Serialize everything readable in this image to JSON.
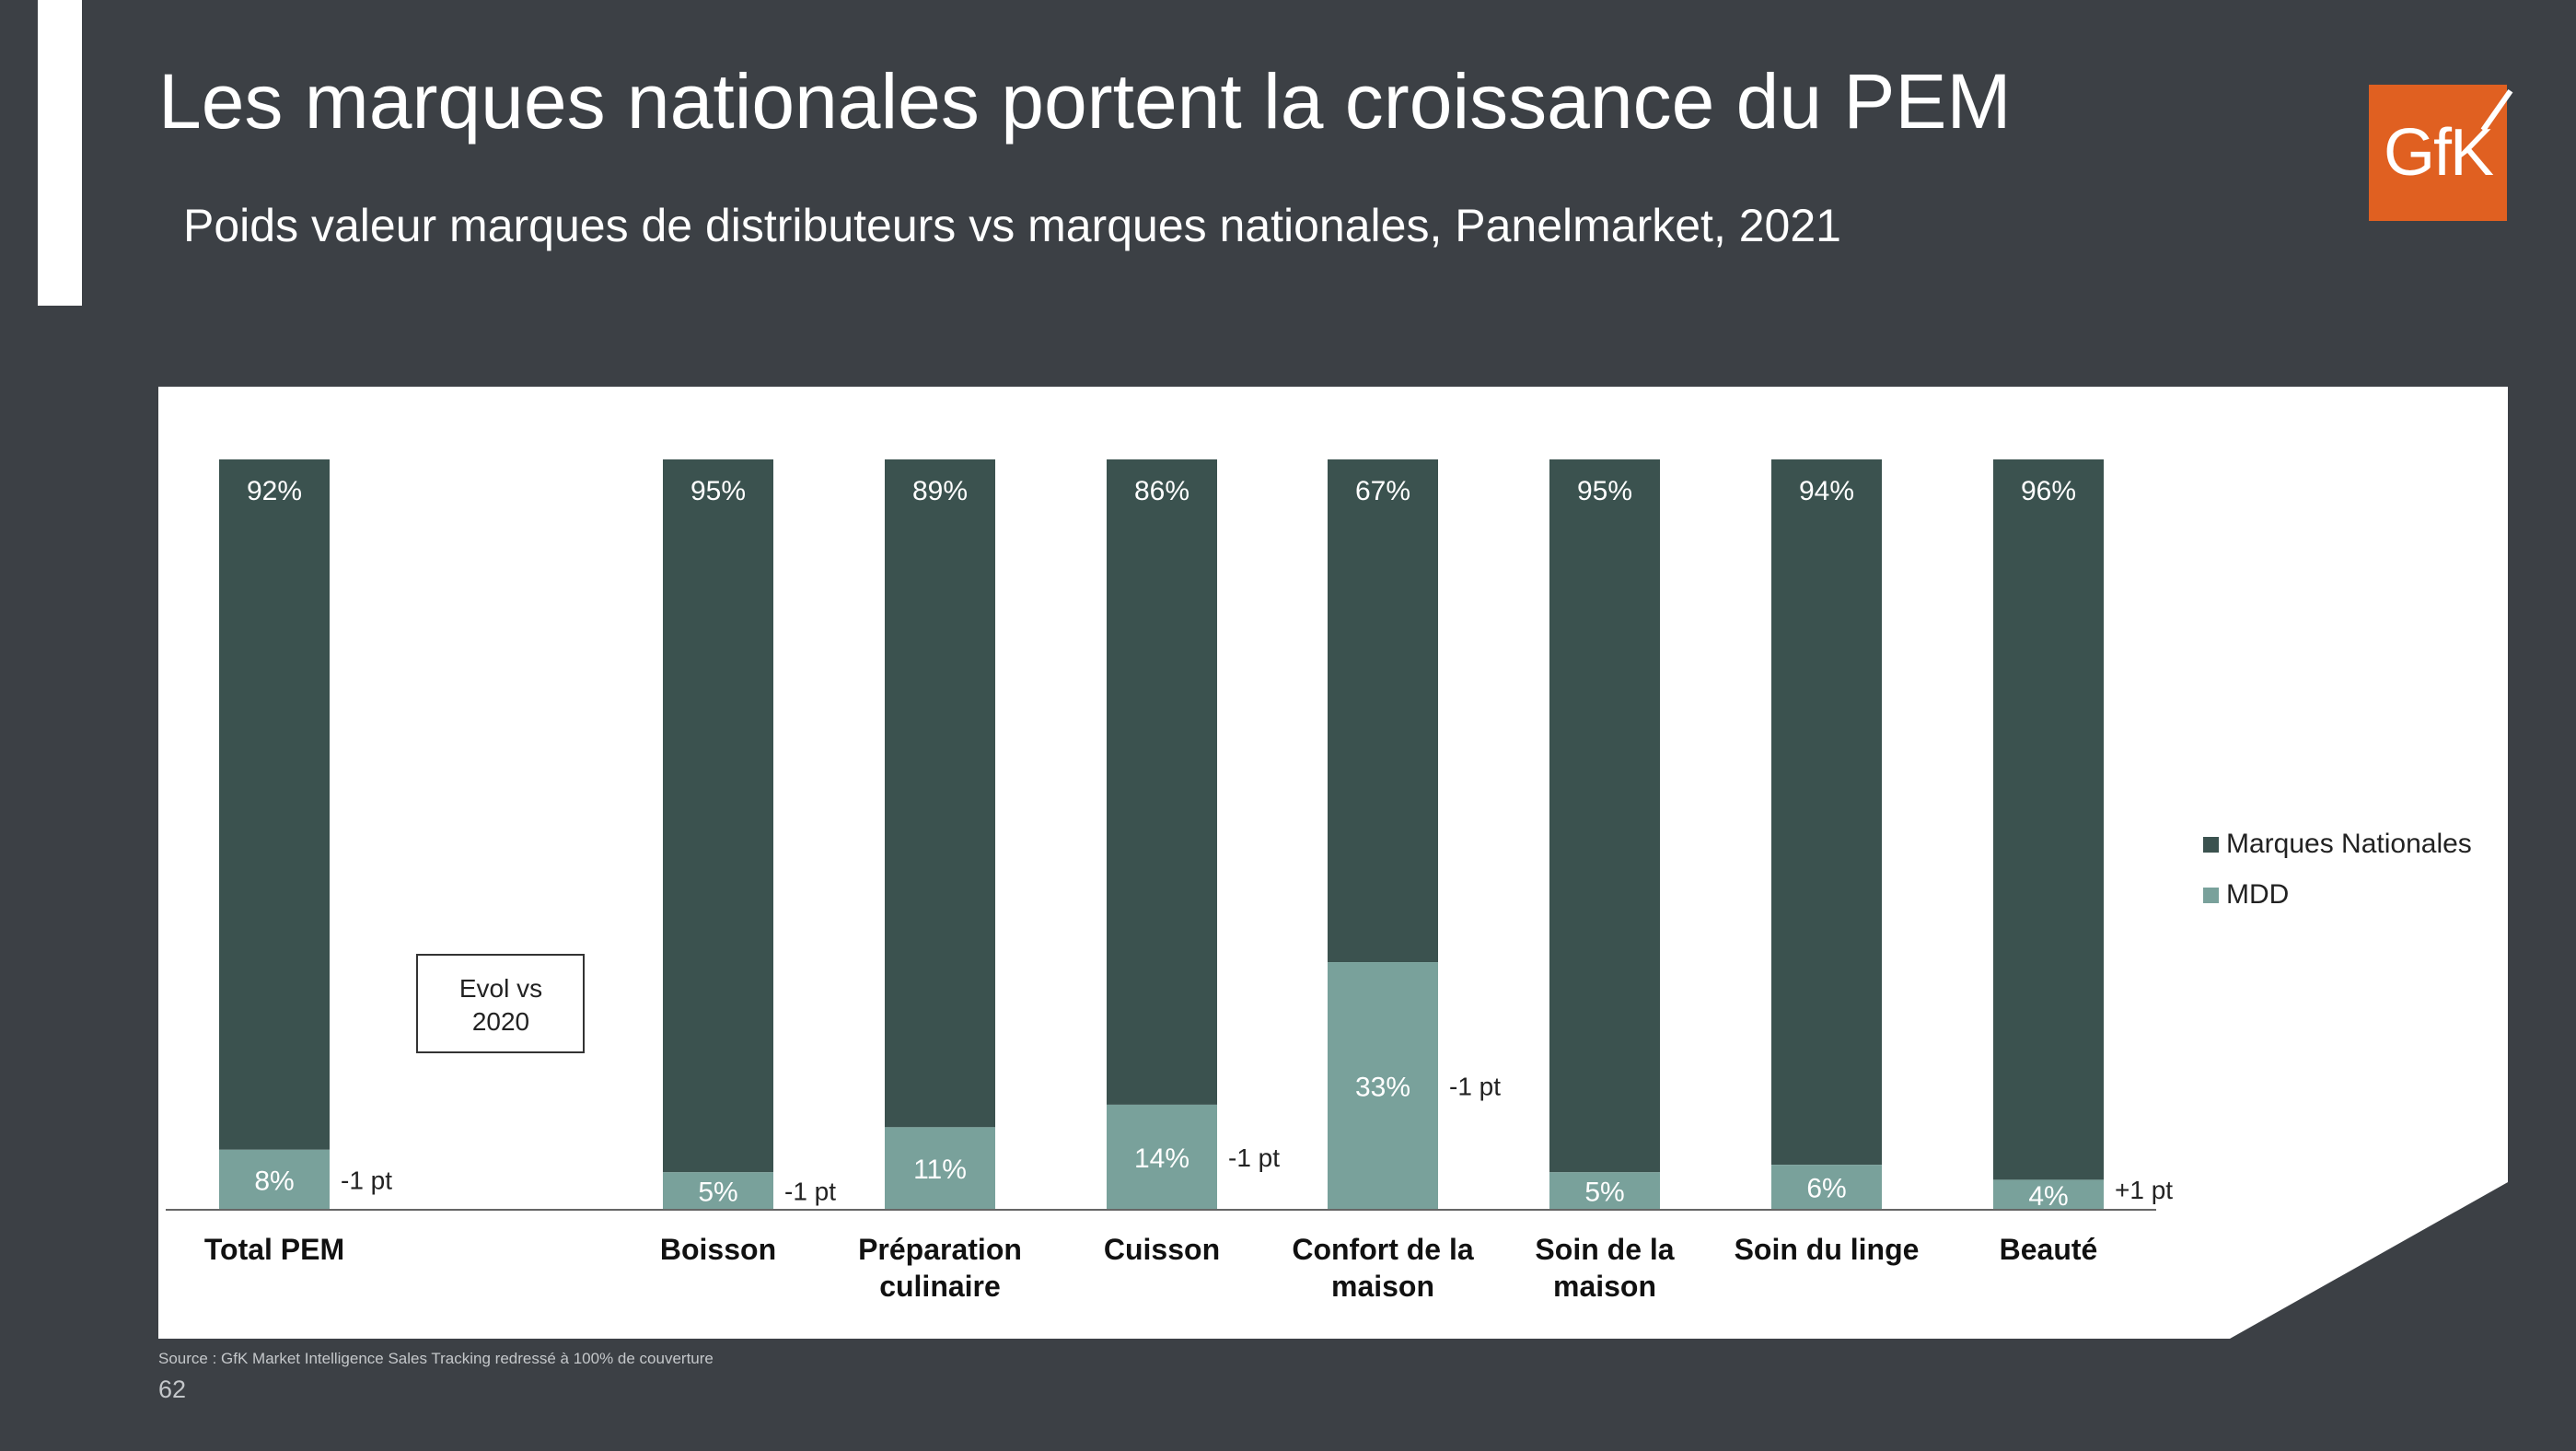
{
  "title": "Les marques nationales portent la croissance du PEM",
  "subtitle": "Poids valeur marques de distributeurs vs marques nationales, Panelmarket, 2021",
  "logo_text": "GfK",
  "source": "Source : GfK Market Intelligence Sales Tracking redressé à 100% de couverture",
  "page_number": "62",
  "chart_data": {
    "type": "bar",
    "stacked": true,
    "categories": [
      "Total PEM",
      "Boisson",
      "Préparation culinaire",
      "Cuisson",
      "Confort de la maison",
      "Soin de la maison",
      "Soin du linge",
      "Beauté"
    ],
    "category_lines": [
      [
        "Total PEM"
      ],
      [
        "Boisson"
      ],
      [
        "Préparation",
        "culinaire"
      ],
      [
        "Cuisson"
      ],
      [
        "Confort de la",
        "maison"
      ],
      [
        "Soin de la",
        "maison"
      ],
      [
        "Soin du linge"
      ],
      [
        "Beauté"
      ]
    ],
    "series": [
      {
        "name": "MDD",
        "values": [
          8,
          5,
          11,
          14,
          33,
          5,
          6,
          4
        ],
        "labels": [
          "8%",
          "5%",
          "11%",
          "14%",
          "33%",
          "5%",
          "6%",
          "4%"
        ]
      },
      {
        "name": "Marques Nationales",
        "values": [
          92,
          95,
          89,
          86,
          67,
          95,
          94,
          96
        ],
        "labels": [
          "92%",
          "95%",
          "89%",
          "86%",
          "67%",
          "95%",
          "94%",
          "96%"
        ]
      }
    ],
    "evolution_labels": [
      "-1 pt",
      "-1 pt",
      "",
      "-1 pt",
      "-1 pt",
      "",
      "",
      "+1 pt"
    ],
    "evolution_box": [
      "Evol vs",
      "2020"
    ],
    "legend": [
      {
        "name": "Marques Nationales"
      },
      {
        "name": "MDD"
      }
    ],
    "legend_position": "right",
    "ylim": [
      0,
      100
    ],
    "grid": false,
    "colors": {
      "Marques Nationales": "#3b524f",
      "MDD": "#79a19b",
      "text": "#222222"
    }
  }
}
